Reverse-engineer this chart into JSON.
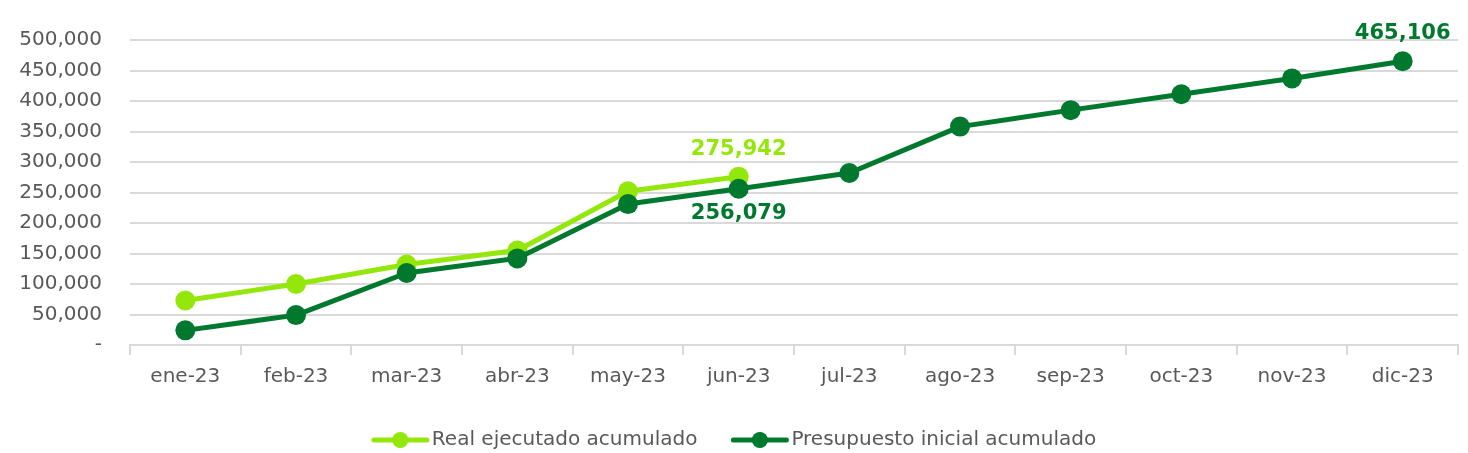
{
  "chart_data": {
    "type": "line",
    "categories": [
      "ene-23",
      "feb-23",
      "mar-23",
      "abr-23",
      "may-23",
      "jun-23",
      "jul-23",
      "ago-23",
      "sep-23",
      "oct-23",
      "nov-23",
      "dic-23"
    ],
    "series": [
      {
        "name": "Real ejecutado acumulado",
        "color": "#94e70b",
        "values": [
          73000,
          100000,
          132000,
          155000,
          252000,
          275942,
          null,
          null,
          null,
          null,
          null,
          null
        ],
        "value_labels": [
          null,
          null,
          null,
          null,
          null,
          "275,942",
          null,
          null,
          null,
          null,
          null,
          null
        ]
      },
      {
        "name": "Presupuesto inicial acumulado",
        "color": "#00792f",
        "values": [
          24000,
          49000,
          118000,
          142000,
          231000,
          256079,
          282000,
          358000,
          385000,
          411000,
          437000,
          465106
        ],
        "value_labels": [
          null,
          null,
          null,
          null,
          null,
          "256,079",
          null,
          null,
          null,
          null,
          null,
          "465,106"
        ]
      }
    ],
    "ylim": [
      0,
      500000
    ],
    "yticks": [
      {
        "value": 0,
        "label": "-"
      },
      {
        "value": 50000,
        "label": "50,000"
      },
      {
        "value": 100000,
        "label": "100,000"
      },
      {
        "value": 150000,
        "label": "150,000"
      },
      {
        "value": 200000,
        "label": "200,000"
      },
      {
        "value": 250000,
        "label": "250,000"
      },
      {
        "value": 300000,
        "label": "300,000"
      },
      {
        "value": 350000,
        "label": "350,000"
      },
      {
        "value": 400000,
        "label": "400,000"
      },
      {
        "value": 450000,
        "label": "450,000"
      },
      {
        "value": 500000,
        "label": "500,000"
      }
    ],
    "grid": "y",
    "legend": "bottom",
    "marker": "circle",
    "line_style": "solid"
  }
}
